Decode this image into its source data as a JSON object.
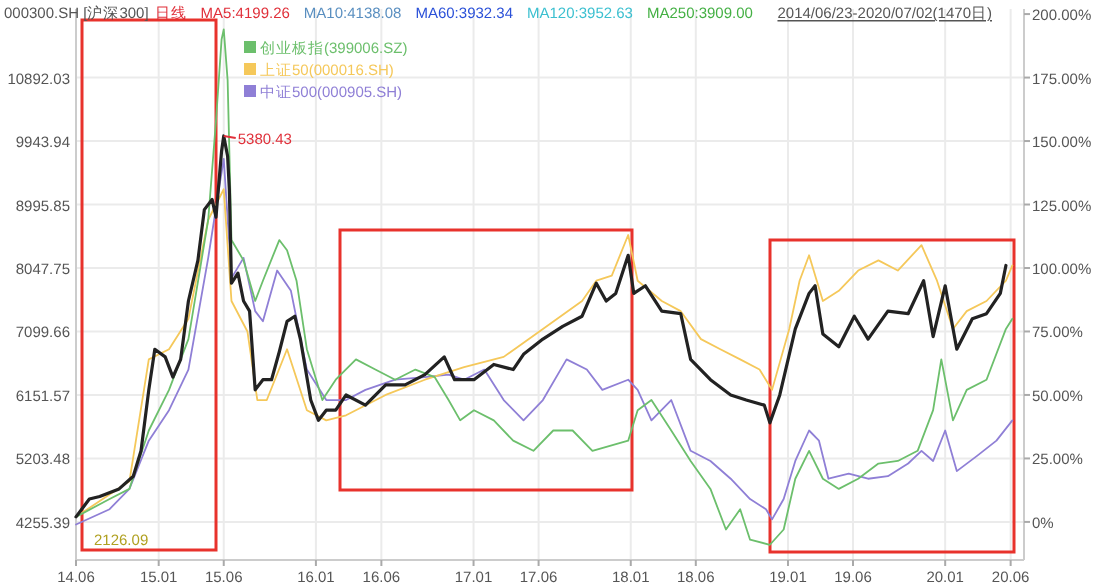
{
  "chart_data": {
    "type": "line",
    "annotations": [
      "000300.SH [沪深300]",
      "日线",
      "MA5:4199.26",
      "MA10:4138.08",
      "MA60:3932.34",
      "MA120:3952.63",
      "MA250:3909.00",
      "2014/06/23-2020/07/02(1470日)",
      "5380.43",
      "2126.09"
    ],
    "xlim": [
      "2014-06-23",
      "2020-07-02"
    ],
    "xticks": [
      {
        "value": "2014-06-23",
        "label": "14.06"
      },
      {
        "value": "2015-01-01",
        "label": "15.01"
      },
      {
        "value": "2015-06-01",
        "label": "15.06"
      },
      {
        "value": "2016-01-01",
        "label": "16.01"
      },
      {
        "value": "2016-06-01",
        "label": "16.06"
      },
      {
        "value": "2017-01-01",
        "label": "17.01"
      },
      {
        "value": "2017-06-01",
        "label": "17.06"
      },
      {
        "value": "2018-01-01",
        "label": "18.01"
      },
      {
        "value": "2018-06-01",
        "label": "18.06"
      },
      {
        "value": "2019-01-01",
        "label": "19.01"
      },
      {
        "value": "2019-06-01",
        "label": "19.06"
      },
      {
        "value": "2020-01-01",
        "label": "20.01"
      },
      {
        "value": "2020-06-01",
        "label": "20.06"
      }
    ],
    "ylim": [
      3686.54,
      11916.2
    ],
    "yticks": [
      4255.39,
      5203.48,
      6151.57,
      7099.66,
      8047.75,
      8995.85,
      9943.94,
      10892.03
    ],
    "y2lim": [
      -15,
      202
    ],
    "y2ticks": [
      {
        "value": 0,
        "label": "0%"
      },
      {
        "value": 25,
        "label": "25.00%"
      },
      {
        "value": 50,
        "label": "50.00%"
      },
      {
        "value": 75,
        "label": "75.00%"
      },
      {
        "value": 100,
        "label": "100.00%"
      },
      {
        "value": 125,
        "label": "125.00%"
      },
      {
        "value": 150,
        "label": "150.00%"
      },
      {
        "value": 175,
        "label": "175.00%"
      },
      {
        "value": 200,
        "label": "200.00%"
      }
    ],
    "grid": true,
    "legend": "top left",
    "series": [
      {
        "color": "#222222",
        "axis": "y2",
        "x": [
          "2014-06-23",
          "2014-07-24",
          "2014-08-17",
          "2014-10-01",
          "2014-11-03",
          "2014-11-21",
          "2014-12-09",
          "2014-12-23",
          "2015-01-16",
          "2015-02-03",
          "2015-02-21",
          "2015-03-11",
          "2015-04-02",
          "2015-04-17",
          "2015-05-05",
          "2015-05-14",
          "2015-05-27",
          "2015-06-01",
          "2015-06-10",
          "2015-06-14",
          "2015-06-19",
          "2015-07-04",
          "2015-07-17",
          "2015-07-31",
          "2015-08-13",
          "2015-08-31",
          "2015-09-20",
          "2015-10-08",
          "2015-10-26",
          "2015-11-13",
          "2015-11-26",
          "2015-12-20",
          "2016-01-07",
          "2016-01-25",
          "2016-02-16",
          "2016-03-11",
          "2016-04-25",
          "2016-06-11",
          "2016-07-26",
          "2016-09-10",
          "2016-10-25",
          "2016-11-18",
          "2017-01-02",
          "2017-02-17",
          "2017-04-03",
          "2017-04-27",
          "2017-06-11",
          "2017-07-27",
          "2017-09-10",
          "2017-10-13",
          "2017-11-05",
          "2017-11-27",
          "2017-12-26",
          "2018-01-08",
          "2018-02-04",
          "2018-03-14",
          "2018-04-27",
          "2018-05-20",
          "2018-07-05",
          "2018-08-21",
          "2018-09-26",
          "2018-11-07",
          "2018-11-20",
          "2018-12-13",
          "2019-01-18",
          "2019-02-19",
          "2019-03-05",
          "2019-03-23",
          "2019-04-29",
          "2019-06-04",
          "2019-07-06",
          "2019-08-21",
          "2019-10-07",
          "2019-11-12",
          "2019-12-04",
          "2020-01-01",
          "2020-01-28",
          "2020-03-04",
          "2020-04-06",
          "2020-05-08",
          "2020-05-21"
        ],
        "values": [
          2,
          9,
          10,
          13,
          18,
          28,
          52,
          68,
          65,
          57,
          64,
          87,
          103,
          123,
          127,
          120,
          146,
          152,
          144,
          131,
          94,
          98,
          87,
          83,
          52,
          56,
          56,
          67,
          79,
          81,
          72,
          48,
          40,
          44,
          44,
          50,
          46,
          54,
          54,
          58,
          65,
          56,
          56,
          62,
          60,
          66,
          72,
          77,
          81,
          94,
          87,
          90,
          105,
          90,
          93,
          83,
          82,
          64,
          56,
          50,
          48,
          46,
          39,
          50,
          76,
          90,
          93,
          74,
          69,
          81,
          72,
          83,
          82,
          95,
          73,
          93,
          68,
          80,
          82,
          90,
          101
        ]
      },
      {
        "name": "创业板指(399006.SZ)",
        "color": "#6cbf6c",
        "axis": "y2",
        "x": [
          "2014-06-23",
          "2014-09-09",
          "2014-10-25",
          "2014-12-09",
          "2015-01-25",
          "2015-03-11",
          "2015-04-26",
          "2015-05-14",
          "2015-05-27",
          "2015-06-01",
          "2015-06-10",
          "2015-06-19",
          "2015-07-17",
          "2015-08-13",
          "2015-08-31",
          "2015-10-08",
          "2015-10-26",
          "2015-11-17",
          "2015-12-11",
          "2016-01-16",
          "2016-02-16",
          "2016-04-03",
          "2016-05-18",
          "2016-07-03",
          "2016-08-19",
          "2016-10-03",
          "2016-11-04",
          "2016-12-01",
          "2017-01-02",
          "2017-02-17",
          "2017-04-03",
          "2017-05-20",
          "2017-07-05",
          "2017-08-19",
          "2017-10-04",
          "2017-12-26",
          "2018-01-17",
          "2018-02-18",
          "2018-04-05",
          "2018-05-20",
          "2018-07-05",
          "2018-08-10",
          "2018-09-12",
          "2018-10-05",
          "2018-11-20",
          "2018-12-22",
          "2019-01-18",
          "2019-02-19",
          "2019-03-23",
          "2019-04-29",
          "2019-06-13",
          "2019-07-30",
          "2019-09-13",
          "2019-10-29",
          "2019-12-04",
          "2019-12-23",
          "2020-01-19",
          "2020-02-20",
          "2020-04-06",
          "2020-05-21",
          "2020-06-05"
        ],
        "values": [
          2,
          9,
          13,
          36,
          52,
          72,
          119,
          158,
          190,
          194,
          174,
          111,
          103,
          87,
          95,
          111,
          107,
          95,
          68,
          48,
          56,
          64,
          60,
          56,
          60,
          57,
          48,
          40,
          44,
          40,
          32,
          28,
          36,
          36,
          28,
          32,
          44,
          48,
          36,
          24,
          13,
          -3,
          5,
          -7,
          -9,
          -3,
          17,
          28,
          17,
          13,
          17,
          23,
          24,
          28,
          44,
          64,
          40,
          52,
          56,
          76,
          80
        ]
      },
      {
        "name": "上证50(000016.SH)",
        "color": "#f5c85a",
        "axis": "y2",
        "x": [
          "2014-06-23",
          "2014-10-25",
          "2014-12-09",
          "2015-01-25",
          "2015-03-11",
          "2015-04-26",
          "2015-06-01",
          "2015-06-19",
          "2015-07-26",
          "2015-08-18",
          "2015-09-09",
          "2015-10-26",
          "2015-12-11",
          "2016-01-25",
          "2016-03-11",
          "2016-06-11",
          "2016-09-10",
          "2016-12-10",
          "2017-03-12",
          "2017-06-11",
          "2017-09-10",
          "2017-10-13",
          "2017-11-18",
          "2017-12-26",
          "2018-01-17",
          "2018-03-14",
          "2018-04-27",
          "2018-06-13",
          "2018-07-28",
          "2018-09-12",
          "2018-10-27",
          "2018-11-25",
          "2019-01-04",
          "2019-01-28",
          "2019-02-19",
          "2019-03-23",
          "2019-04-29",
          "2019-06-13",
          "2019-07-30",
          "2019-09-13",
          "2019-11-07",
          "2019-12-13",
          "2020-01-19",
          "2020-02-20",
          "2020-04-06",
          "2020-05-21",
          "2020-06-05"
        ],
        "values": [
          2,
          16,
          64,
          68,
          80,
          119,
          131,
          87,
          75,
          48,
          48,
          68,
          44,
          40,
          42,
          50,
          56,
          61,
          65,
          76,
          87,
          95,
          97,
          113,
          95,
          87,
          83,
          72,
          68,
          64,
          60,
          52,
          76,
          95,
          105,
          87,
          91,
          99,
          103,
          99,
          109,
          95,
          76,
          83,
          87,
          95,
          101
        ]
      },
      {
        "name": "中证500(000905.SH)",
        "color": "#8f7fd6",
        "axis": "y2",
        "x": [
          "2014-06-23",
          "2014-09-09",
          "2014-10-25",
          "2014-12-09",
          "2015-01-25",
          "2015-03-11",
          "2015-04-26",
          "2015-05-18",
          "2015-06-01",
          "2015-06-19",
          "2015-07-17",
          "2015-08-13",
          "2015-08-31",
          "2015-10-03",
          "2015-11-04",
          "2015-12-11",
          "2016-01-25",
          "2016-03-11",
          "2016-04-25",
          "2016-07-03",
          "2016-09-10",
          "2016-11-04",
          "2016-12-10",
          "2017-01-26",
          "2017-03-12",
          "2017-04-27",
          "2017-06-11",
          "2017-08-05",
          "2017-09-21",
          "2017-10-27",
          "2017-12-26",
          "2018-01-17",
          "2018-02-18",
          "2018-04-05",
          "2018-05-20",
          "2018-07-05",
          "2018-08-21",
          "2018-10-05",
          "2018-11-11",
          "2018-11-25",
          "2018-12-22",
          "2019-01-18",
          "2019-02-19",
          "2019-03-14",
          "2019-04-05",
          "2019-05-22",
          "2019-07-06",
          "2019-08-21",
          "2019-10-07",
          "2019-11-07",
          "2019-12-04",
          "2020-01-01",
          "2020-01-28",
          "2020-03-15",
          "2020-04-29",
          "2020-06-05"
        ],
        "values": [
          -1,
          5,
          13,
          32,
          44,
          60,
          104,
          128,
          143,
          96,
          104,
          83,
          79,
          99,
          91,
          60,
          48,
          48,
          52,
          56,
          57,
          58,
          56,
          60,
          48,
          40,
          48,
          64,
          60,
          52,
          56,
          52,
          40,
          48,
          28,
          24,
          17,
          9,
          5,
          1,
          9,
          24,
          36,
          32,
          17,
          19,
          17,
          18,
          23,
          28,
          24,
          36,
          20,
          26,
          32,
          40
        ]
      }
    ]
  }
}
